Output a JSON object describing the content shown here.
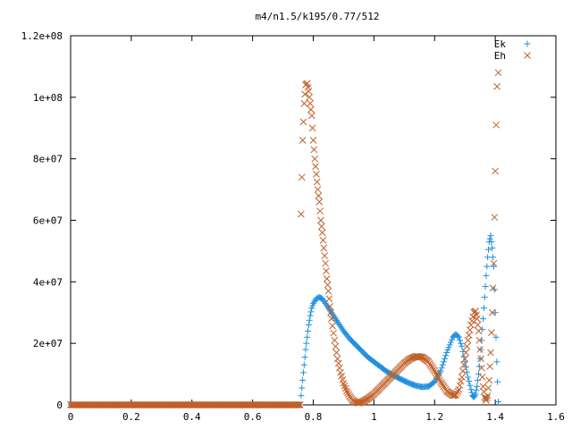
{
  "chart_data": {
    "type": "scatter",
    "title": "m4/n1.5/k195/0.77/512",
    "xlabel": "",
    "ylabel": "",
    "xlim": [
      0,
      1.6
    ],
    "ylim": [
      0,
      120000000
    ],
    "grid": false,
    "legend_position": "top-right",
    "x_ticks": [
      {
        "value": 0,
        "label": "0"
      },
      {
        "value": 0.2,
        "label": "0.2"
      },
      {
        "value": 0.4,
        "label": "0.4"
      },
      {
        "value": 0.6,
        "label": "0.6"
      },
      {
        "value": 0.8,
        "label": "0.8"
      },
      {
        "value": 1.0,
        "label": "1"
      },
      {
        "value": 1.2,
        "label": "1.2"
      },
      {
        "value": 1.4,
        "label": "1.4"
      },
      {
        "value": 1.6,
        "label": "1.6"
      }
    ],
    "y_ticks": [
      {
        "value": 0,
        "label": "0"
      },
      {
        "value": 20000000,
        "label": "2e+07"
      },
      {
        "value": 40000000,
        "label": "4e+07"
      },
      {
        "value": 60000000,
        "label": "6e+07"
      },
      {
        "value": 80000000,
        "label": "8e+07"
      },
      {
        "value": 100000000,
        "label": "1e+08"
      },
      {
        "value": 120000000,
        "label": "1.2e+08"
      }
    ],
    "series": [
      {
        "name": "Ek",
        "marker": "plus",
        "color": "#1f8fdf",
        "x_range": [
          0,
          1.41
        ],
        "points": [
          [
            0.76,
            3000000
          ],
          [
            0.765,
            8000000
          ],
          [
            0.77,
            13000000
          ],
          [
            0.775,
            18000000
          ],
          [
            0.78,
            22000000
          ],
          [
            0.785,
            26000000
          ],
          [
            0.79,
            29000000
          ],
          [
            0.795,
            31500000
          ],
          [
            0.8,
            33000000
          ],
          [
            0.81,
            34500000
          ],
          [
            0.82,
            35000000
          ],
          [
            0.83,
            34500000
          ],
          [
            0.84,
            33000000
          ],
          [
            0.85,
            31500000
          ],
          [
            0.86,
            30000000
          ],
          [
            0.88,
            27000000
          ],
          [
            0.9,
            24000000
          ],
          [
            0.92,
            21500000
          ],
          [
            0.94,
            19500000
          ],
          [
            0.96,
            17500000
          ],
          [
            0.98,
            15500000
          ],
          [
            1.0,
            14000000
          ],
          [
            1.02,
            12500000
          ],
          [
            1.04,
            11000000
          ],
          [
            1.06,
            9800000
          ],
          [
            1.08,
            8800000
          ],
          [
            1.1,
            7800000
          ],
          [
            1.12,
            6900000
          ],
          [
            1.14,
            6200000
          ],
          [
            1.16,
            5800000
          ],
          [
            1.18,
            6000000
          ],
          [
            1.2,
            7500000
          ],
          [
            1.22,
            11000000
          ],
          [
            1.24,
            17000000
          ],
          [
            1.26,
            22000000
          ],
          [
            1.27,
            23000000
          ],
          [
            1.28,
            22000000
          ],
          [
            1.29,
            19000000
          ],
          [
            1.3,
            14000000
          ],
          [
            1.31,
            9000000
          ],
          [
            1.32,
            5000000
          ],
          [
            1.325,
            3000000
          ],
          [
            1.33,
            2500000
          ],
          [
            1.335,
            3500000
          ],
          [
            1.34,
            6000000
          ],
          [
            1.345,
            10000000
          ],
          [
            1.35,
            15000000
          ],
          [
            1.355,
            21000000
          ],
          [
            1.36,
            28000000
          ],
          [
            1.365,
            35000000
          ],
          [
            1.37,
            42000000
          ],
          [
            1.375,
            48000000
          ],
          [
            1.38,
            53000000
          ],
          [
            1.385,
            55000000
          ],
          [
            1.39,
            51000000
          ],
          [
            1.395,
            45000000
          ],
          [
            1.4,
            30000000
          ],
          [
            1.405,
            14000000
          ],
          [
            1.41,
            1000000
          ]
        ]
      },
      {
        "name": "Eh",
        "marker": "cross",
        "color": "#c0602a",
        "x_range": [
          0,
          1.41
        ],
        "points": [
          [
            0.76,
            62000000
          ],
          [
            0.765,
            86000000
          ],
          [
            0.77,
            98000000
          ],
          [
            0.775,
            104000000
          ],
          [
            0.78,
            104500000
          ],
          [
            0.785,
            102000000
          ],
          [
            0.79,
            98000000
          ],
          [
            0.795,
            94000000
          ],
          [
            0.8,
            86000000
          ],
          [
            0.805,
            80000000
          ],
          [
            0.81,
            75000000
          ],
          [
            0.815,
            70000000
          ],
          [
            0.82,
            66000000
          ],
          [
            0.825,
            60000000
          ],
          [
            0.83,
            56000000
          ],
          [
            0.835,
            51000000
          ],
          [
            0.84,
            46000000
          ],
          [
            0.845,
            41000000
          ],
          [
            0.85,
            37000000
          ],
          [
            0.855,
            32000000
          ],
          [
            0.86,
            28000000
          ],
          [
            0.87,
            21000000
          ],
          [
            0.88,
            15000000
          ],
          [
            0.89,
            10500000
          ],
          [
            0.9,
            7000000
          ],
          [
            0.91,
            4500000
          ],
          [
            0.92,
            2800000
          ],
          [
            0.93,
            1500000
          ],
          [
            0.94,
            800000
          ],
          [
            0.95,
            600000
          ],
          [
            0.96,
            900000
          ],
          [
            0.98,
            2000000
          ],
          [
            1.0,
            3500000
          ],
          [
            1.02,
            5500000
          ],
          [
            1.04,
            7500000
          ],
          [
            1.06,
            9500000
          ],
          [
            1.08,
            11500000
          ],
          [
            1.1,
            13500000
          ],
          [
            1.12,
            15000000
          ],
          [
            1.14,
            15800000
          ],
          [
            1.16,
            15500000
          ],
          [
            1.18,
            14000000
          ],
          [
            1.2,
            11000000
          ],
          [
            1.22,
            7500000
          ],
          [
            1.24,
            4500000
          ],
          [
            1.26,
            3000000
          ],
          [
            1.27,
            3200000
          ],
          [
            1.28,
            5000000
          ],
          [
            1.29,
            9000000
          ],
          [
            1.3,
            15000000
          ],
          [
            1.31,
            21000000
          ],
          [
            1.32,
            26000000
          ],
          [
            1.33,
            30000000
          ],
          [
            1.335,
            30500000
          ],
          [
            1.34,
            28000000
          ],
          [
            1.345,
            24000000
          ],
          [
            1.35,
            18000000
          ],
          [
            1.355,
            12000000
          ],
          [
            1.36,
            6000000
          ],
          [
            1.365,
            2500000
          ],
          [
            1.37,
            1500000
          ],
          [
            1.375,
            3000000
          ],
          [
            1.38,
            8000000
          ],
          [
            1.385,
            17000000
          ],
          [
            1.39,
            30000000
          ],
          [
            1.395,
            46000000
          ],
          [
            1.4,
            76000000
          ],
          [
            1.403,
            91000000
          ],
          [
            1.406,
            103500000
          ],
          [
            1.41,
            108000000
          ]
        ]
      }
    ]
  }
}
